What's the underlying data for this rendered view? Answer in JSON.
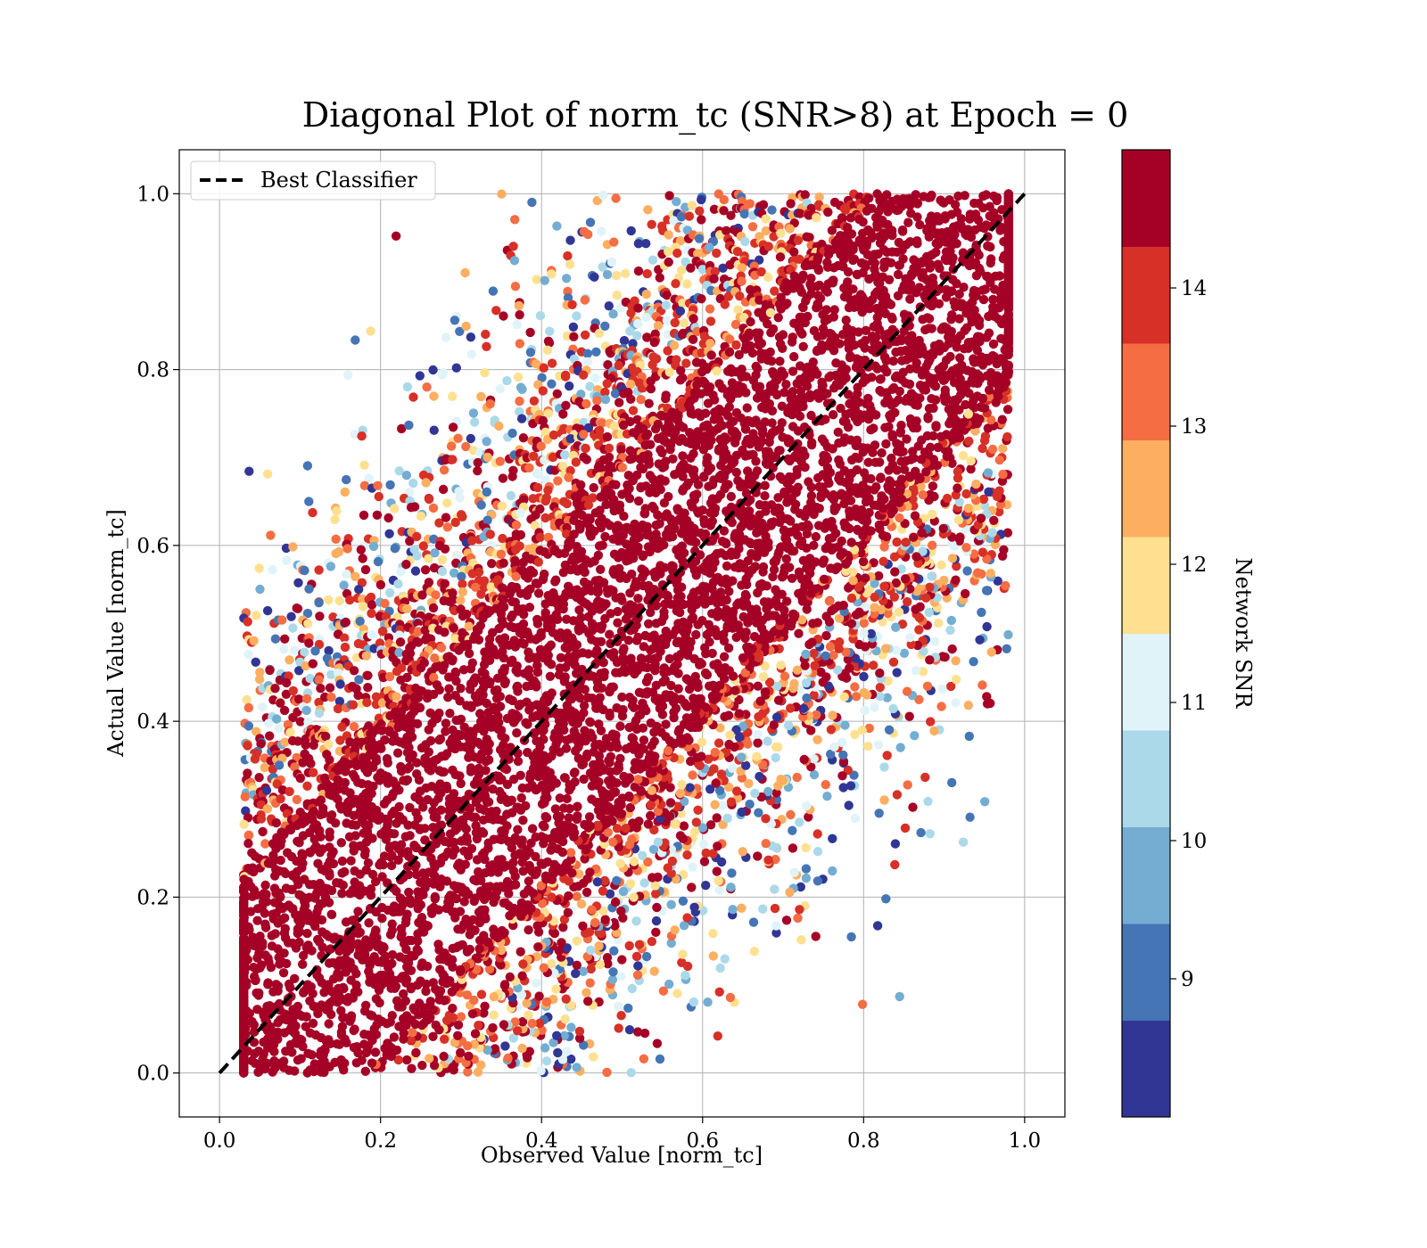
{
  "chart_data": {
    "type": "scatter",
    "title": "Diagonal Plot of norm_tc (SNR>8) at Epoch = 0",
    "xlabel": "Observed Value [norm_tc]",
    "ylabel": "Actual Value [norm_tc]",
    "xlim": [
      -0.05,
      1.05
    ],
    "ylim": [
      -0.05,
      1.05
    ],
    "xticks": [
      "0.0",
      "0.2",
      "0.4",
      "0.6",
      "0.8",
      "1.0"
    ],
    "yticks": [
      "0.0",
      "0.2",
      "0.4",
      "0.6",
      "0.8",
      "1.0"
    ],
    "grid": true,
    "legend": {
      "placement": "upper-left",
      "entries": [
        {
          "label": "Best Classifier",
          "style": "dashed",
          "color": "#000000"
        }
      ]
    },
    "reference_line": {
      "name": "Best Classifier",
      "x": [
        0,
        1
      ],
      "y": [
        0,
        1
      ]
    },
    "point_distribution": {
      "x_range": [
        0.03,
        0.98
      ],
      "y_range": [
        0.0,
        1.0
      ],
      "dense_band_half_width": 0.2,
      "description_color_rule": "high SNR points (dark red) concentrated along the diagonal; lower SNR points spread further away"
    },
    "colorbar": {
      "label": "Network SNR",
      "range": [
        8,
        15
      ],
      "ticks": [
        "9",
        "10",
        "11",
        "12",
        "13",
        "14"
      ],
      "tick_values": [
        9,
        10,
        11,
        12,
        13,
        14
      ],
      "colors": [
        "#313695",
        "#4575b4",
        "#74add1",
        "#abd9e9",
        "#e0f3f8",
        "#fee090",
        "#fdae61",
        "#f46d43",
        "#d73027",
        "#a50026"
      ]
    }
  }
}
